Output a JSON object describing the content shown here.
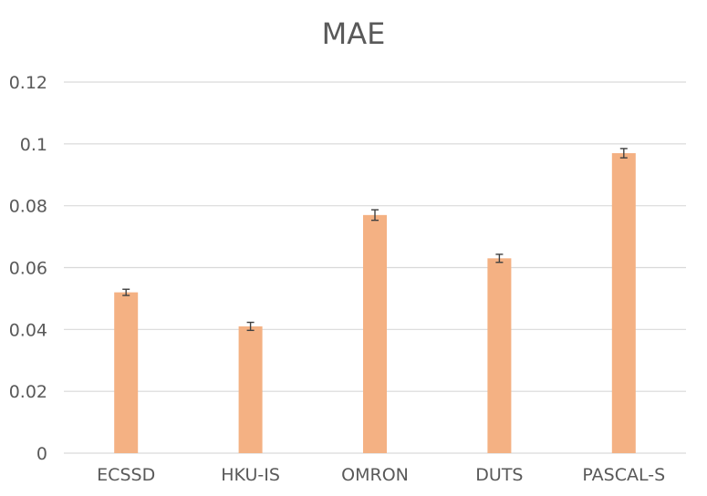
{
  "chart_data": {
    "type": "bar",
    "title": "MAE",
    "categories": [
      "ECSSD",
      "HKU-IS",
      "OMRON",
      "DUTS",
      "PASCAL-S"
    ],
    "values": [
      0.052,
      0.041,
      0.077,
      0.063,
      0.097
    ],
    "error": [
      0.001,
      0.0013,
      0.0017,
      0.0013,
      0.0015
    ],
    "ylim": [
      0,
      0.12
    ],
    "yticks": [
      "0",
      "0.02",
      "0.04",
      "0.06",
      "0.08",
      "0.1",
      "0.12"
    ],
    "xlabel": "",
    "ylabel": "",
    "grid": true,
    "bar_color": "#F4B183",
    "error_bar_color": "#404040",
    "grid_color": "#D9D9D9"
  }
}
